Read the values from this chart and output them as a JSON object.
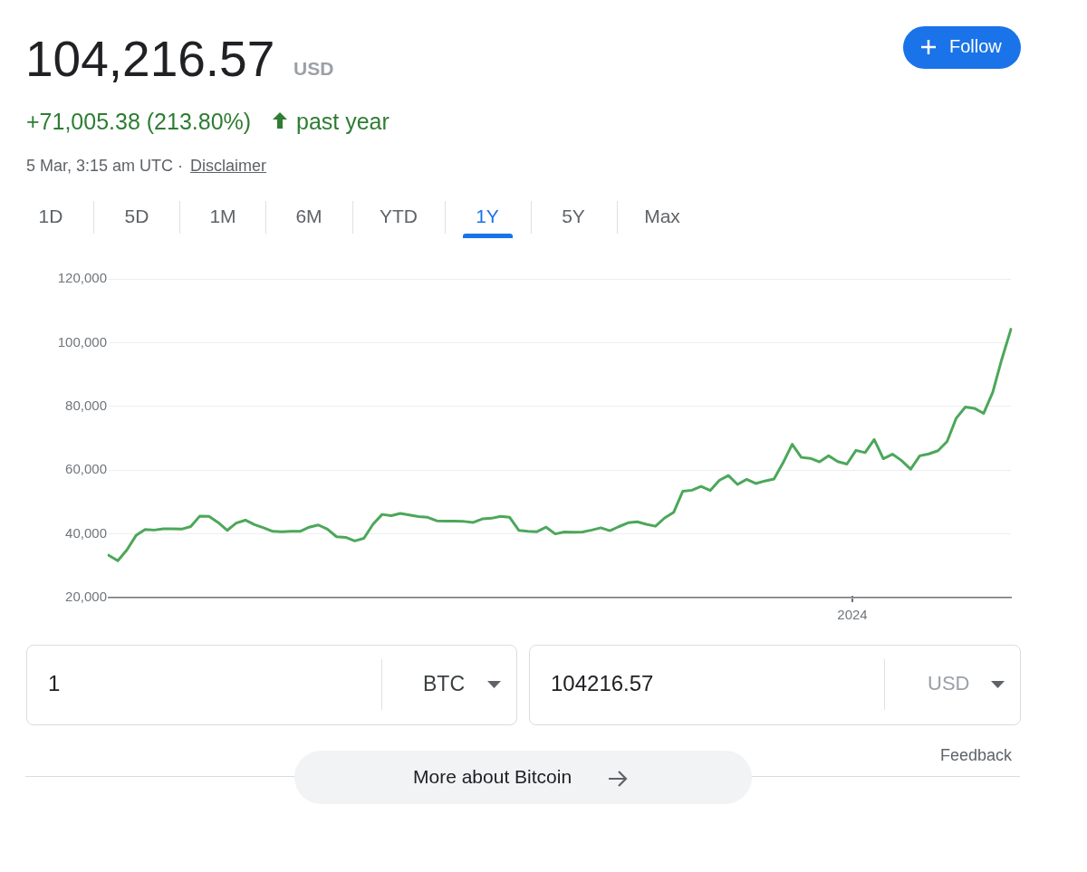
{
  "chart_data": {
    "type": "line",
    "title": "104,216.57",
    "subtitle": "+71,005.38 (213.80%)",
    "annotations": [
      "USD",
      "past year",
      "5 Mar, 3:15 am UTC ·",
      "Disclaimer",
      "1D",
      "5D",
      "1M",
      "6M",
      "YTD",
      "1Y",
      "5Y",
      "Max",
      "Follow",
      "1",
      "BTC",
      "104216.57",
      "USD",
      "Feedback",
      "More about Bitcoin",
      "2024"
    ],
    "categories": [
      null,
      null,
      null,
      null,
      null,
      null,
      null,
      null,
      null,
      null,
      null,
      null,
      null,
      null,
      null,
      null,
      null,
      null,
      null,
      null,
      null,
      null,
      null,
      null,
      null,
      null,
      null,
      null,
      null,
      null,
      null,
      null,
      null,
      null,
      null,
      null,
      null,
      null,
      null,
      null,
      null,
      null,
      null,
      null,
      null,
      null,
      null,
      null,
      null,
      null,
      null,
      null,
      null,
      null,
      null,
      null,
      null,
      null,
      null,
      null,
      null,
      null,
      null,
      null,
      null,
      null,
      null,
      null,
      null,
      null,
      null,
      null,
      null,
      null,
      null,
      null,
      null,
      null,
      null,
      null,
      null,
      null,
      null,
      null,
      null,
      null,
      null,
      null,
      null,
      null,
      null,
      null,
      null,
      null,
      null,
      null,
      null,
      null,
      null,
      null
    ],
    "series": [
      {
        "color": "#4ca75a",
        "values": [
          33300,
          31600,
          35000,
          39500,
          41400,
          41200,
          41600,
          41600,
          41500,
          42300,
          45600,
          45500,
          43600,
          41100,
          43400,
          44300,
          42900,
          41900,
          40800,
          40700,
          40800,
          40800,
          42100,
          42800,
          41500,
          39100,
          38900,
          37800,
          38600,
          43000,
          46100,
          45700,
          46400,
          45900,
          45400,
          45200,
          44100,
          44000,
          44000,
          43900,
          43600,
          44700,
          44900,
          45500,
          45200,
          41100,
          40800,
          40700,
          42100,
          40000,
          40600,
          40500,
          40600,
          41200,
          41900,
          41000,
          42300,
          43500,
          43800,
          43000,
          42400,
          45000,
          46800,
          53400,
          53700,
          54900,
          53600,
          56800,
          58300,
          55500,
          57100,
          55800,
          56600,
          57200,
          62300,
          68100,
          64000,
          63700,
          62600,
          64500,
          62700,
          61900,
          66200,
          65500,
          69600,
          63600,
          65000,
          63000,
          60300,
          64500,
          65100,
          66100,
          69000,
          76300,
          79800,
          79400,
          77800,
          84400,
          94800,
          104200
        ]
      }
    ],
    "ylim": [
      20000,
      120000
    ],
    "yticks": [
      {
        "value": 20000,
        "label": "20,000"
      },
      {
        "value": 40000,
        "label": "40,000"
      },
      {
        "value": 60000,
        "label": "60,000"
      },
      {
        "value": 80000,
        "label": "80,000"
      },
      {
        "value": 100000,
        "label": "100,000"
      },
      {
        "value": 120000,
        "label": "120,000"
      }
    ],
    "grid": "y",
    "legend": false,
    "marker": "none",
    "line_style": "solid"
  }
}
